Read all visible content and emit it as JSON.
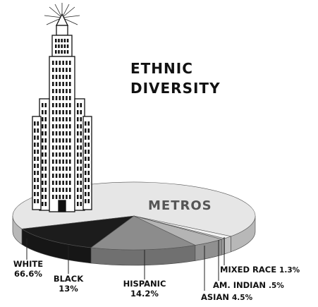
{
  "chart_data": {
    "type": "pie",
    "title": "ETHNIC DIVERSITY",
    "annotation": "METROS",
    "categories": [
      "WHITE",
      "BLACK",
      "HISPANIC",
      "ASIAN",
      "AM. INDIAN",
      "MIXED RACE"
    ],
    "values": [
      66.6,
      13,
      14.2,
      4.5,
      0.5,
      1.3
    ],
    "value_labels": [
      "66.6%",
      "13%",
      "14.2%",
      "4.5%",
      ".5%",
      "1.3%"
    ],
    "colors": [
      "#e6e6e6",
      "#1c1c1c",
      "#8c8c8c",
      "#b4b4b4",
      "#d2d2d2",
      "#f2f2f2"
    ]
  }
}
